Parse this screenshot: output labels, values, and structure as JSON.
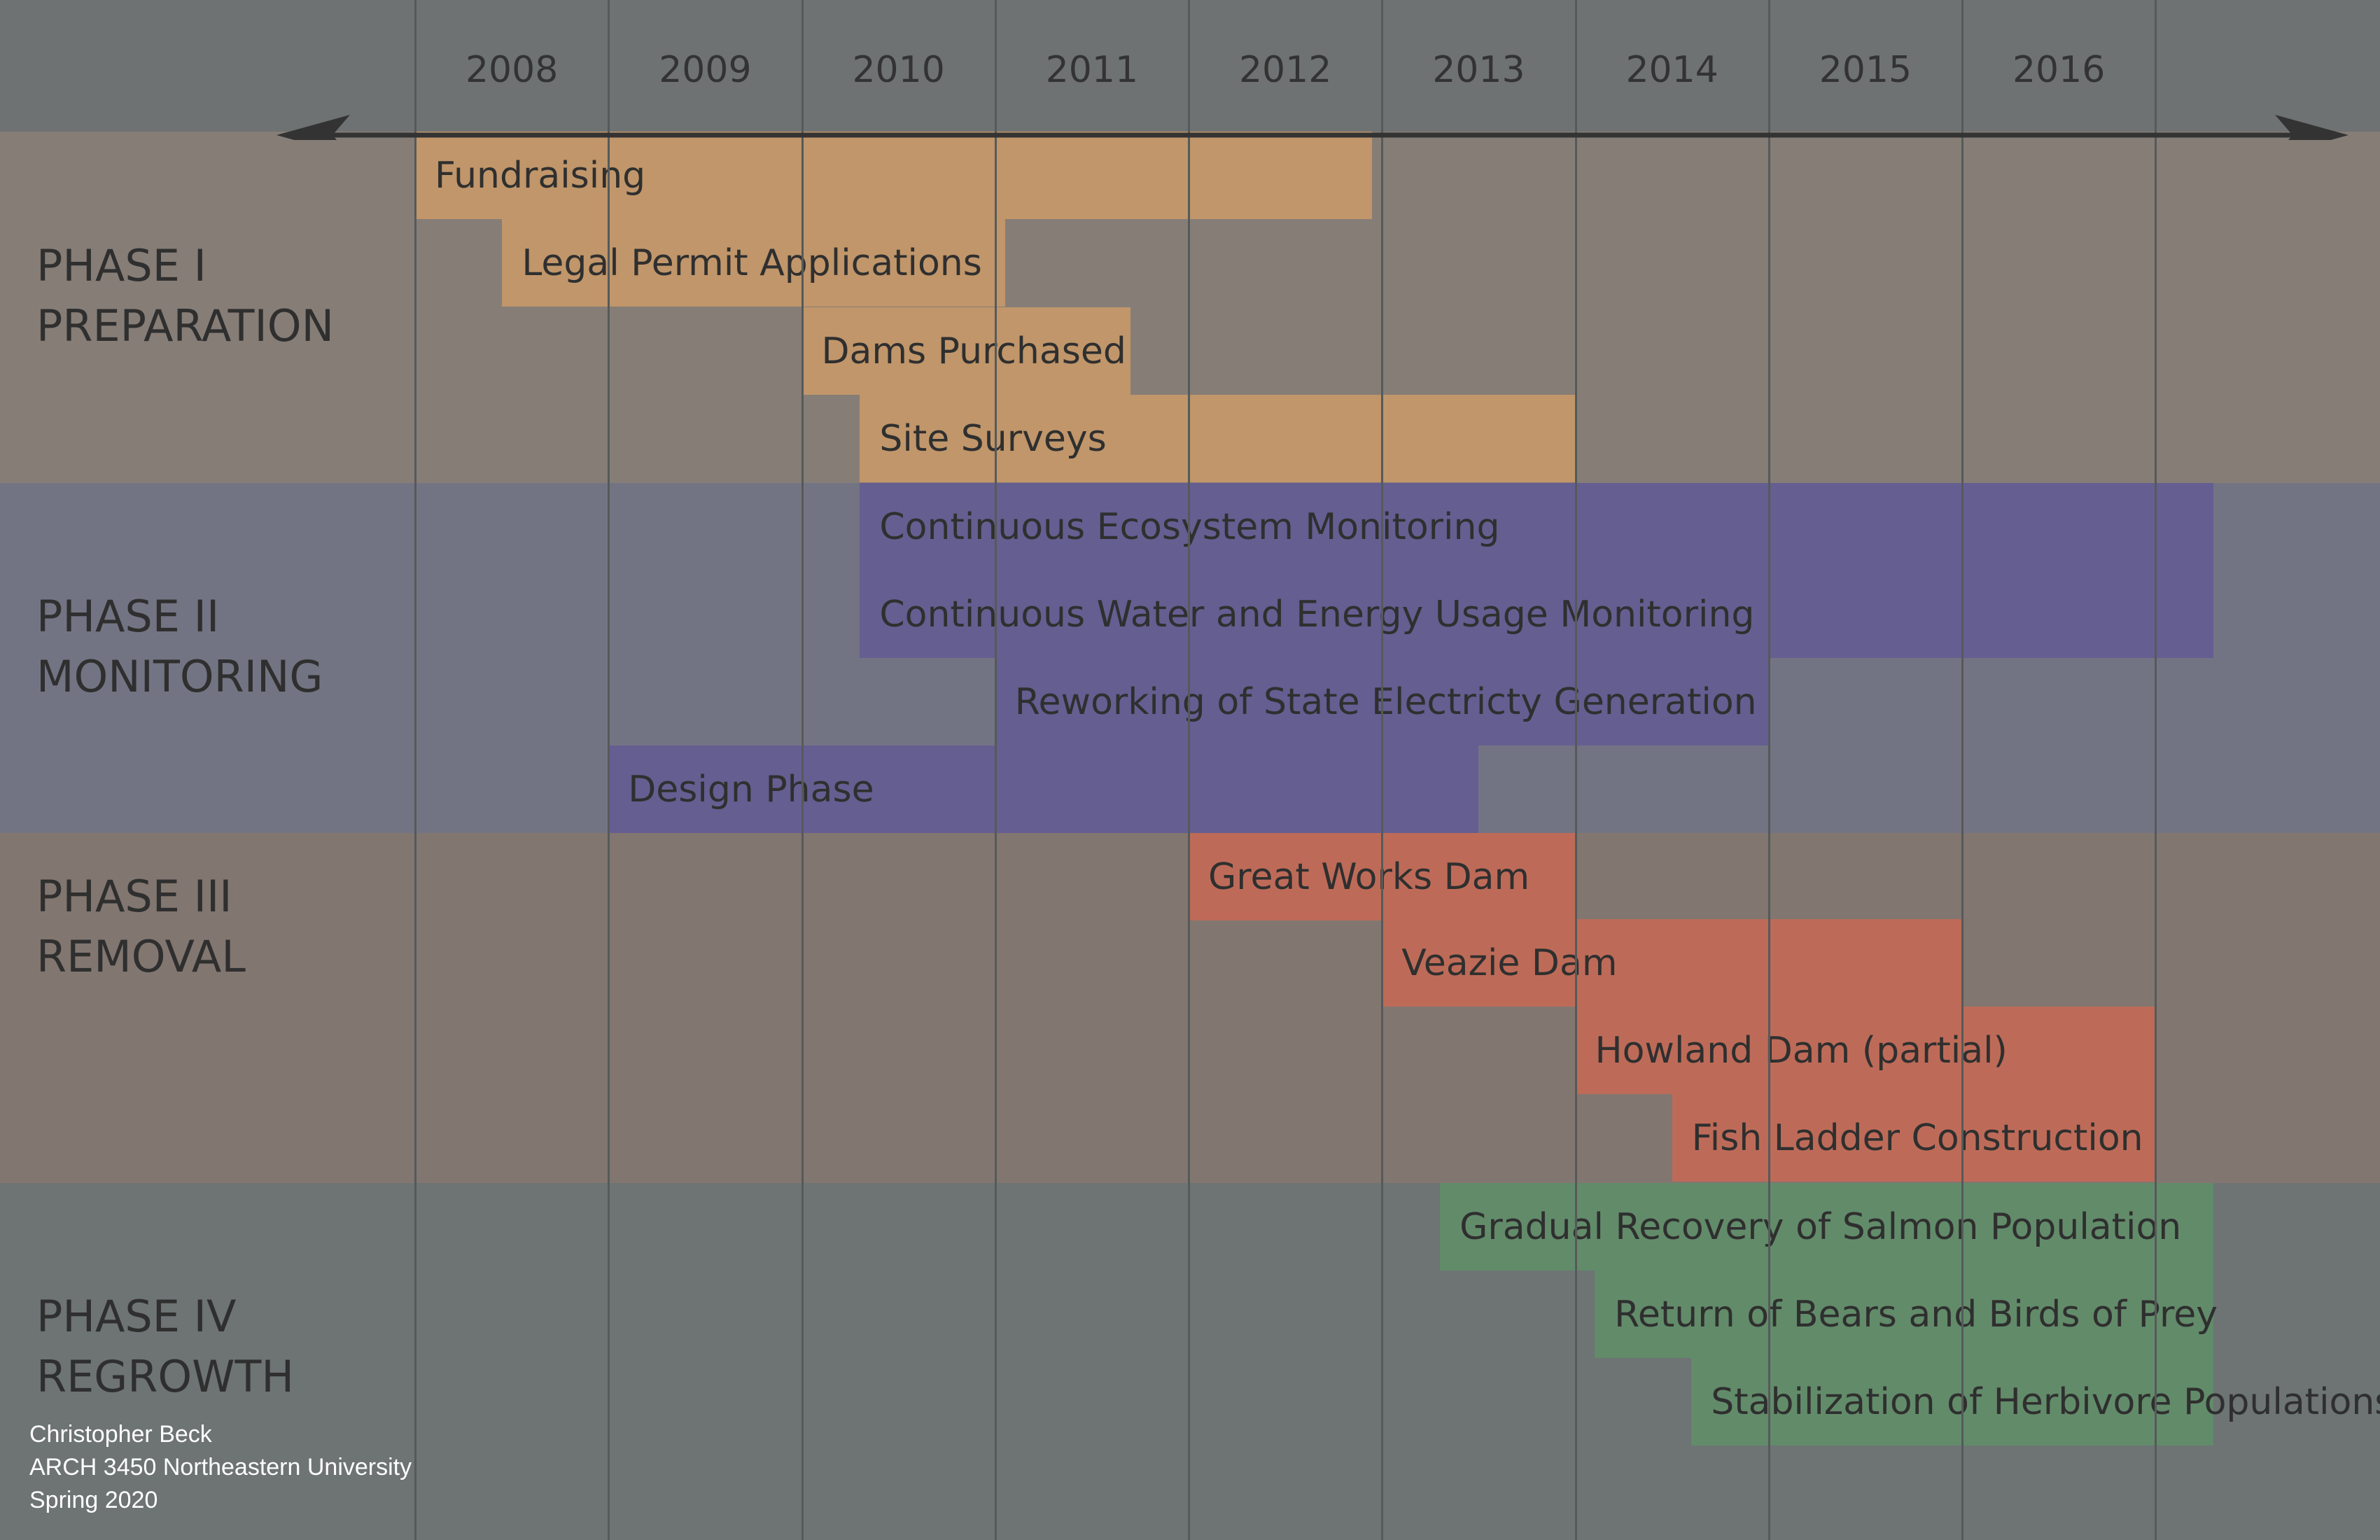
{
  "years": [
    "2008",
    "2009",
    "2010",
    "2011",
    "2012",
    "2013",
    "2014",
    "2015",
    "2016"
  ],
  "phases": [
    {
      "line1": "PHASE I",
      "line2": "PREPARATION",
      "color": "#867d77"
    },
    {
      "line1": "PHASE II",
      "line2": "MONITORING",
      "color": "#737483"
    },
    {
      "line1": "PHASE III",
      "line2": "REMOVAL",
      "color": "#827670"
    },
    {
      "line1": "PHASE IV",
      "line2": "REGROWTH",
      "color": "#6d7473"
    }
  ],
  "phase_colors": {
    "preparation": "#c0966a",
    "monitoring": "#655e91",
    "removal": "#bd6b58",
    "regrowth": "#628b6a"
  },
  "tasks": [
    {
      "label": "Fundraising",
      "phase": "preparation",
      "start": 2008.0,
      "end": 2012.95
    },
    {
      "label": "Legal Permit Applications",
      "phase": "preparation",
      "start": 2008.45,
      "end": 2011.05
    },
    {
      "label": "Dams Purchased",
      "phase": "preparation",
      "start": 2010.0,
      "end": 2011.7
    },
    {
      "label": "Site Surveys",
      "phase": "preparation",
      "start": 2010.3,
      "end": 2014.0
    },
    {
      "label": "Continuous Ecosystem Monitoring",
      "phase": "monitoring",
      "start": 2010.3,
      "end": 2017.3
    },
    {
      "label": "Continuous Water and Energy Usage Monitoring",
      "phase": "monitoring",
      "start": 2010.3,
      "end": 2017.3
    },
    {
      "label": "Reworking of State Electricty Generation",
      "phase": "monitoring",
      "start": 2011.0,
      "end": 2015.0
    },
    {
      "label": "Design Phase",
      "phase": "monitoring",
      "start": 2009.0,
      "end": 2013.5
    },
    {
      "label": "Great Works Dam",
      "phase": "removal",
      "start": 2012.0,
      "end": 2014.0
    },
    {
      "label": "Veazie Dam",
      "phase": "removal",
      "start": 2013.0,
      "end": 2016.0
    },
    {
      "label": "Howland Dam (partial)",
      "phase": "removal",
      "start": 2014.0,
      "end": 2017.0
    },
    {
      "label": "Fish Ladder Construction",
      "phase": "removal",
      "start": 2014.5,
      "end": 2017.0
    },
    {
      "label": "Gradual Recovery of Salmon Population",
      "phase": "regrowth",
      "start": 2013.3,
      "end": 2017.3
    },
    {
      "label": "Return of Bears and Birds of Prey",
      "phase": "regrowth",
      "start": 2014.1,
      "end": 2017.3
    },
    {
      "label": "Stabilization of Herbivore Populations",
      "phase": "regrowth",
      "start": 2014.6,
      "end": 2017.3
    }
  ],
  "credit": {
    "line1": "Christopher Beck",
    "line2": "ARCH 3450 Northeastern University",
    "line3": "Spring 2020"
  },
  "colors": {
    "header": "#6f7272",
    "grid_line": "#555a5a",
    "arrow": "#333333",
    "credit_text": "#ffffff"
  }
}
